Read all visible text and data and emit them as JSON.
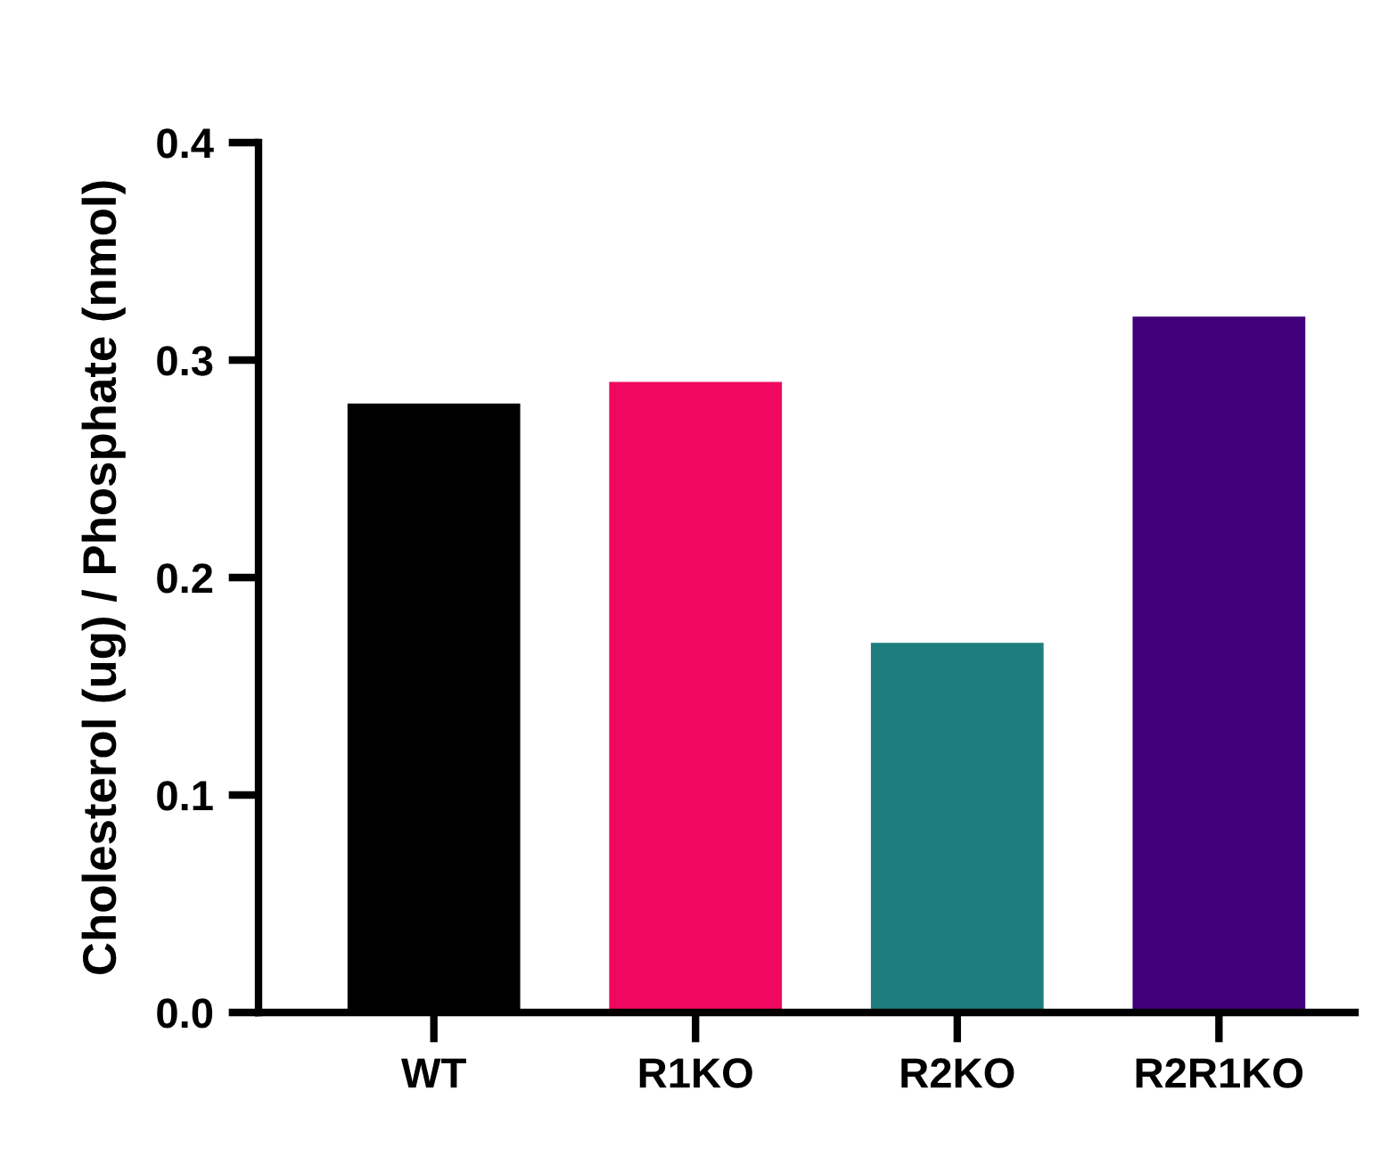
{
  "chart_data": {
    "type": "bar",
    "ylabel": "Cholesterol (ug) / Phosphate (nmol)",
    "categories": [
      "WT",
      "R1KO",
      "R2KO",
      "R2R1KO"
    ],
    "values": [
      0.28,
      0.29,
      0.17,
      0.32
    ],
    "colors": [
      "#000000",
      "#f0075f",
      "#1e7e7e",
      "#41007a"
    ],
    "ylim": [
      0,
      0.4
    ],
    "yticks": [
      {
        "value": 0,
        "label": "0.0"
      },
      0.1,
      0.2,
      0.3,
      0.4
    ],
    "grid": false,
    "legend": false
  }
}
